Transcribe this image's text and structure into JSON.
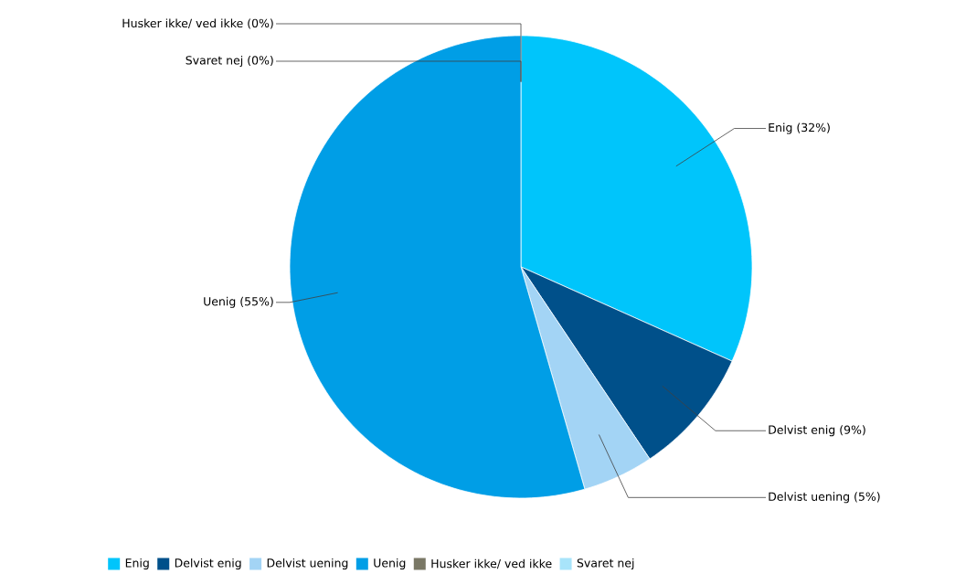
{
  "chart_data": {
    "type": "pie",
    "categories": [
      "Enig",
      "Delvist enig",
      "Delvist uening",
      "Uenig",
      "Husker ikke/ ved ikke",
      "Svaret nej"
    ],
    "values": [
      32,
      9,
      5,
      55,
      0,
      0
    ],
    "colors": [
      "#00c5fb",
      "#00508a",
      "#a3d4f5",
      "#009ee6",
      "#7a7866",
      "#a8e4fa"
    ],
    "value_labels": [
      "Enig (32%)",
      "Delvist enig (9%)",
      "Delvist uening (5%)",
      "Uenig (55%)",
      "Husker ikke/ ved ikke (0%)",
      "Svaret nej (0%)"
    ],
    "legend": "bottom"
  }
}
